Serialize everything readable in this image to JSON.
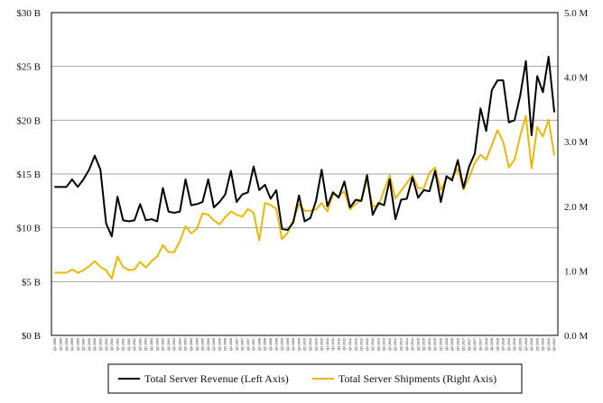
{
  "chart_data": {
    "type": "line",
    "left_axis": {
      "ylim": [
        0,
        30
      ],
      "ticks": [
        0,
        5,
        10,
        15,
        20,
        25,
        30
      ],
      "tick_labels": [
        "$0 B",
        "$5 B",
        "$10 B",
        "$15 B",
        "$20 B",
        "$25 B",
        "$30 B"
      ]
    },
    "right_axis": {
      "ylim": [
        0,
        5
      ],
      "ticks": [
        0,
        1,
        2,
        3,
        4,
        5
      ],
      "tick_labels": [
        "0.0 M",
        "1.0 M",
        "2.0 M",
        "3.0 M",
        "4.0 M",
        "5.0 M"
      ]
    },
    "grid": true,
    "legend_position": "bottom",
    "x": [
      "Q1 1999",
      "Q2 1999",
      "Q3 1999",
      "Q4 1999",
      "Q1 2000",
      "Q2 2000",
      "Q3 2000",
      "Q4 2000",
      "Q1 2001",
      "Q2 2001",
      "Q3 2001",
      "Q4 2001",
      "Q1 2002",
      "Q2 2002",
      "Q3 2002",
      "Q4 2002",
      "Q1 2003",
      "Q2 2003",
      "Q3 2003",
      "Q4 2003",
      "Q1 2004",
      "Q2 2004",
      "Q3 2004",
      "Q4 2004",
      "Q1 2005",
      "Q2 2005",
      "Q3 2005",
      "Q4 2005",
      "Q1 2006",
      "Q2 2006",
      "Q3 2006",
      "Q4 2006",
      "Q1 2007",
      "Q2 2007",
      "Q3 2007",
      "Q4 2007",
      "Q1 2008",
      "Q2 2008",
      "Q3 2008",
      "Q4 2008",
      "Q1 2009",
      "Q2 2009",
      "Q3 2009",
      "Q4 2009",
      "Q1 2010",
      "Q2 2010",
      "Q3 2010",
      "Q4 2010",
      "Q1 2011",
      "Q2 2011",
      "Q3 2011",
      "Q4 2011",
      "Q1 2012",
      "Q2 2012",
      "Q3 2012",
      "Q4 2012",
      "Q1 2013",
      "Q2 2013",
      "Q3 2013",
      "Q4 2013",
      "Q1 2014",
      "Q2 2014",
      "Q3 2014",
      "Q4 2014",
      "Q1 2015",
      "Q2 2015",
      "Q3 2015",
      "Q4 2015",
      "Q1 2016",
      "Q2 2016",
      "Q3 2016",
      "Q4 2016",
      "Q1 2017",
      "Q2 2017",
      "Q3 2017",
      "Q4 2017",
      "Q1 2018",
      "Q2 2018",
      "Q3 2018",
      "Q4 2018",
      "Q1 2019",
      "Q2 2019",
      "Q3 2019",
      "Q4 2019",
      "Q1 2020",
      "Q2 2020",
      "Q3 2020",
      "Q4 2020",
      "Q1 2021"
    ],
    "series": [
      {
        "name": "Total Server Revenue (Left Axis)",
        "axis": "left",
        "color": "#000000",
        "values": [
          13.8,
          13.8,
          13.8,
          14.5,
          13.8,
          14.5,
          15.4,
          16.7,
          15.4,
          10.4,
          9.2,
          12.9,
          10.7,
          10.6,
          10.7,
          12.2,
          10.7,
          10.8,
          10.6,
          13.7,
          11.5,
          11.4,
          11.5,
          14.5,
          12.1,
          12.2,
          12.4,
          14.5,
          11.9,
          12.4,
          13.1,
          15.3,
          12.4,
          13.1,
          13.3,
          15.7,
          13.5,
          14.0,
          12.7,
          13.5,
          9.9,
          9.8,
          10.5,
          13.0,
          10.6,
          10.9,
          12.5,
          15.4,
          12.0,
          13.3,
          12.8,
          14.3,
          11.9,
          12.6,
          12.5,
          14.9,
          11.2,
          12.3,
          12.1,
          14.5,
          10.8,
          12.6,
          12.7,
          14.7,
          12.8,
          13.5,
          13.4,
          15.3,
          12.4,
          14.8,
          14.4,
          16.3,
          13.7,
          15.7,
          16.9,
          21.1,
          19.0,
          22.8,
          23.7,
          23.7,
          19.8,
          20.0,
          22.3,
          25.5,
          18.6,
          24.1,
          22.6,
          25.9,
          20.8
        ]
      },
      {
        "name": "Total Server Shipments (Right Axis)",
        "axis": "right",
        "color": "#E8B80C",
        "values": [
          0.97,
          0.97,
          0.97,
          1.02,
          0.97,
          1.01,
          1.07,
          1.15,
          1.06,
          1.01,
          0.88,
          1.22,
          1.06,
          1.01,
          1.02,
          1.14,
          1.05,
          1.15,
          1.22,
          1.4,
          1.29,
          1.29,
          1.46,
          1.69,
          1.58,
          1.65,
          1.89,
          1.87,
          1.78,
          1.72,
          1.83,
          1.92,
          1.87,
          1.84,
          1.96,
          1.9,
          1.47,
          2.05,
          2.02,
          1.96,
          1.49,
          1.59,
          1.79,
          2.03,
          1.93,
          1.93,
          1.95,
          2.05,
          1.92,
          2.18,
          2.16,
          2.23,
          1.95,
          2.04,
          2.1,
          2.4,
          2.0,
          2.0,
          2.25,
          2.48,
          2.12,
          2.24,
          2.36,
          2.48,
          2.28,
          2.28,
          2.52,
          2.6,
          2.25,
          2.43,
          2.45,
          2.58,
          2.26,
          2.45,
          2.67,
          2.8,
          2.72,
          2.95,
          3.18,
          3.0,
          2.6,
          2.72,
          3.09,
          3.4,
          2.59,
          3.23,
          3.08,
          3.34,
          2.8
        ]
      }
    ]
  }
}
